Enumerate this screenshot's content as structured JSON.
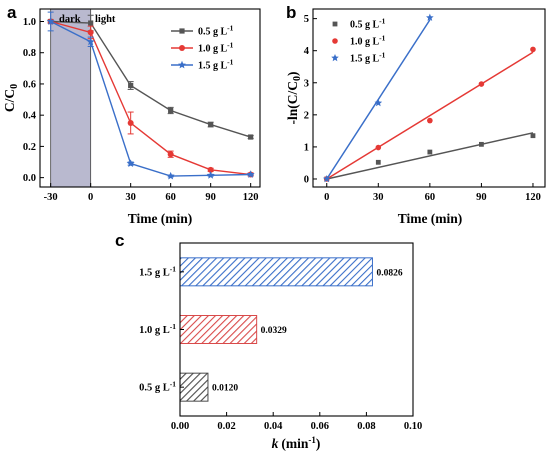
{
  "chart_data": [
    {
      "panel": "a",
      "type": "line",
      "xlabel": "Time (min)",
      "ylabel": "C/C",
      "ylabel_sub": "0",
      "x_ticks": [
        "-30",
        "0",
        "30",
        "60",
        "90",
        "120"
      ],
      "y_ticks": [
        "0.0",
        "0.2",
        "0.4",
        "0.6",
        "0.8",
        "1.0"
      ],
      "xlim": [
        -38,
        127
      ],
      "ylim": [
        -0.06,
        1.08
      ],
      "shaded_region": {
        "x_from": -30,
        "x_to": 0,
        "color": "#b9b9cf"
      },
      "annotations": [
        "dark",
        "light"
      ],
      "legend_position": "top-right",
      "x": [
        -30,
        0,
        30,
        60,
        90,
        120
      ],
      "series": [
        {
          "name": "0.5 g L",
          "name_sup": "-1",
          "color": "#555555",
          "marker": "square",
          "values": [
            1.0,
            0.99,
            0.59,
            0.43,
            0.34,
            0.26
          ],
          "errors": [
            0.01,
            0.05,
            0.025,
            0.02,
            0.015,
            0.01
          ]
        },
        {
          "name": "1.0 g L",
          "name_sup": "-1",
          "color": "#e53935",
          "marker": "circle",
          "values": [
            1.0,
            0.93,
            0.35,
            0.15,
            0.05,
            0.02
          ],
          "errors": [
            0.01,
            0.04,
            0.07,
            0.02,
            0.01,
            0.01
          ]
        },
        {
          "name": "1.5 g L",
          "name_sup": "-1",
          "color": "#3a6fc9",
          "marker": "star",
          "values": [
            1.0,
            0.87,
            0.09,
            0.01,
            0.015,
            0.02
          ],
          "errors": [
            0.06,
            0.03,
            0.01,
            0.005,
            0.005,
            0.005
          ]
        }
      ]
    },
    {
      "panel": "b",
      "type": "scatter",
      "xlabel": "Time (min)",
      "ylabel": "-ln(C/C",
      "ylabel_sub": "0",
      "ylabel_end": ")",
      "x_ticks": [
        "0",
        "30",
        "60",
        "90",
        "120"
      ],
      "y_ticks": [
        "0",
        "1",
        "2",
        "3",
        "4",
        "5"
      ],
      "xlim": [
        -8,
        127
      ],
      "ylim": [
        -0.25,
        5.3
      ],
      "legend_position": "top-left",
      "series": [
        {
          "name": "0.5 g L",
          "name_sup": "-1",
          "color": "#555555",
          "marker": "square",
          "x": [
            0,
            30,
            60,
            90,
            120
          ],
          "values": [
            0.0,
            0.52,
            0.84,
            1.08,
            1.35
          ],
          "fit_end": [
            120,
            1.44
          ]
        },
        {
          "name": "1.0 g L",
          "name_sup": "-1",
          "color": "#e53935",
          "marker": "circle",
          "x": [
            0,
            30,
            60,
            90,
            120
          ],
          "values": [
            0.0,
            0.98,
            1.82,
            2.96,
            4.04
          ],
          "fit_end": [
            120,
            3.95
          ]
        },
        {
          "name": "1.5 g L",
          "name_sup": "-1",
          "color": "#3a6fc9",
          "marker": "star",
          "x": [
            0,
            30,
            60
          ],
          "values": [
            0.0,
            2.37,
            5.03
          ],
          "fit_end": [
            60,
            4.96
          ]
        }
      ]
    },
    {
      "panel": "c",
      "type": "bar",
      "orientation": "horizontal",
      "xlabel": "k",
      "xlabel_unit": "(min",
      "xlabel_unit_sup": "-1",
      "xlabel_unit_end": ")",
      "x_ticks": [
        "0.00",
        "0.02",
        "0.04",
        "0.06",
        "0.08",
        "0.10"
      ],
      "xlim": [
        0,
        0.1
      ],
      "categories": [
        {
          "label": "0.5 g L",
          "sup": "-1"
        },
        {
          "label": "1.0 g L",
          "sup": "-1"
        },
        {
          "label": "1.5 g L",
          "sup": "-1"
        }
      ],
      "values": [
        0.012,
        0.0329,
        0.0826
      ],
      "value_labels": [
        "0.0120",
        "0.0329",
        "0.0826"
      ],
      "colors": [
        "#4a4a4a",
        "#d94a4a",
        "#3a6fc9"
      ],
      "fill": "diagonal-hatch"
    }
  ],
  "panel_letters": [
    "a",
    "b",
    "c"
  ]
}
